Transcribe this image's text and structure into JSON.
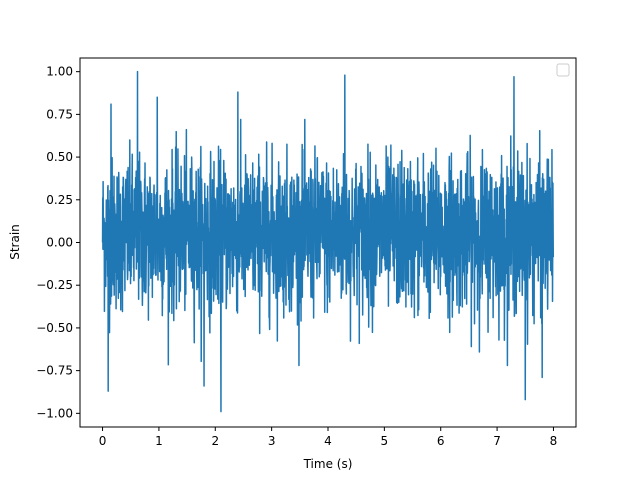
{
  "chart_data": {
    "type": "line",
    "title": "",
    "xlabel": "Time (s)",
    "ylabel": "Strain",
    "xlim": [
      -0.4,
      8.4
    ],
    "ylim": [
      -1.08,
      1.08
    ],
    "x_ticks": [
      0,
      1,
      2,
      3,
      4,
      5,
      6,
      7,
      8
    ],
    "x_tick_labels": [
      "0",
      "1",
      "2",
      "3",
      "4",
      "5",
      "6",
      "7",
      "8"
    ],
    "y_ticks": [
      -1.0,
      -0.75,
      -0.5,
      -0.25,
      0.0,
      0.25,
      0.5,
      0.75,
      1.0
    ],
    "y_tick_labels": [
      "−1.00",
      "−0.75",
      "−0.50",
      "−0.25",
      "0.00",
      "0.25",
      "0.50",
      "0.75",
      "1.00"
    ],
    "grid": false,
    "legend": {
      "placement": "top-right",
      "entries": []
    },
    "series": [
      {
        "color": "#1f77b4",
        "x_start": 0,
        "x_end": 8,
        "n_points": 2400,
        "description": "dense noise-like strain signal, mostly between -0.5 and 0.6",
        "peaks": [
          {
            "x": 0.62,
            "y": 1.0
          },
          {
            "x": 4.3,
            "y": 0.98
          },
          {
            "x": 7.3,
            "y": 0.97
          },
          {
            "x": 0.15,
            "y": 0.81
          },
          {
            "x": 0.97,
            "y": 0.85
          },
          {
            "x": 2.4,
            "y": 0.88
          },
          {
            "x": 2.1,
            "y": -0.99
          },
          {
            "x": 7.5,
            "y": -0.92
          },
          {
            "x": 0.1,
            "y": -0.87
          },
          {
            "x": 1.8,
            "y": -0.84
          },
          {
            "x": 7.8,
            "y": -0.79
          }
        ]
      }
    ]
  }
}
